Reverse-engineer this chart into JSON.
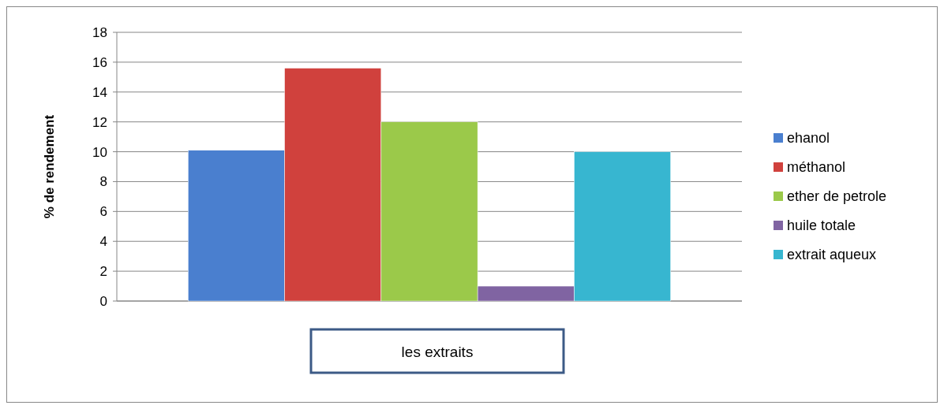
{
  "chart_data": {
    "type": "bar",
    "xlabel": "les extraits",
    "ylabel": "% de rendement",
    "categories": [
      null
    ],
    "series": [
      {
        "name": "ehanol",
        "color": "#4a7fcf",
        "values": [
          10.1
        ]
      },
      {
        "name": "méthanol",
        "color": "#d0413d",
        "values": [
          15.6
        ]
      },
      {
        "name": "ether de petrole",
        "color": "#9bc94a",
        "values": [
          12.0
        ]
      },
      {
        "name": "huile totale",
        "color": "#8064a2",
        "values": [
          1.0
        ]
      },
      {
        "name": "extrait aqueux",
        "color": "#37b6d0",
        "values": [
          10.0
        ]
      }
    ],
    "ylim": [
      0,
      18
    ],
    "yticks": [
      0,
      2,
      4,
      6,
      8,
      10,
      12,
      14,
      16,
      18
    ],
    "grid": "y",
    "legend": "right"
  }
}
